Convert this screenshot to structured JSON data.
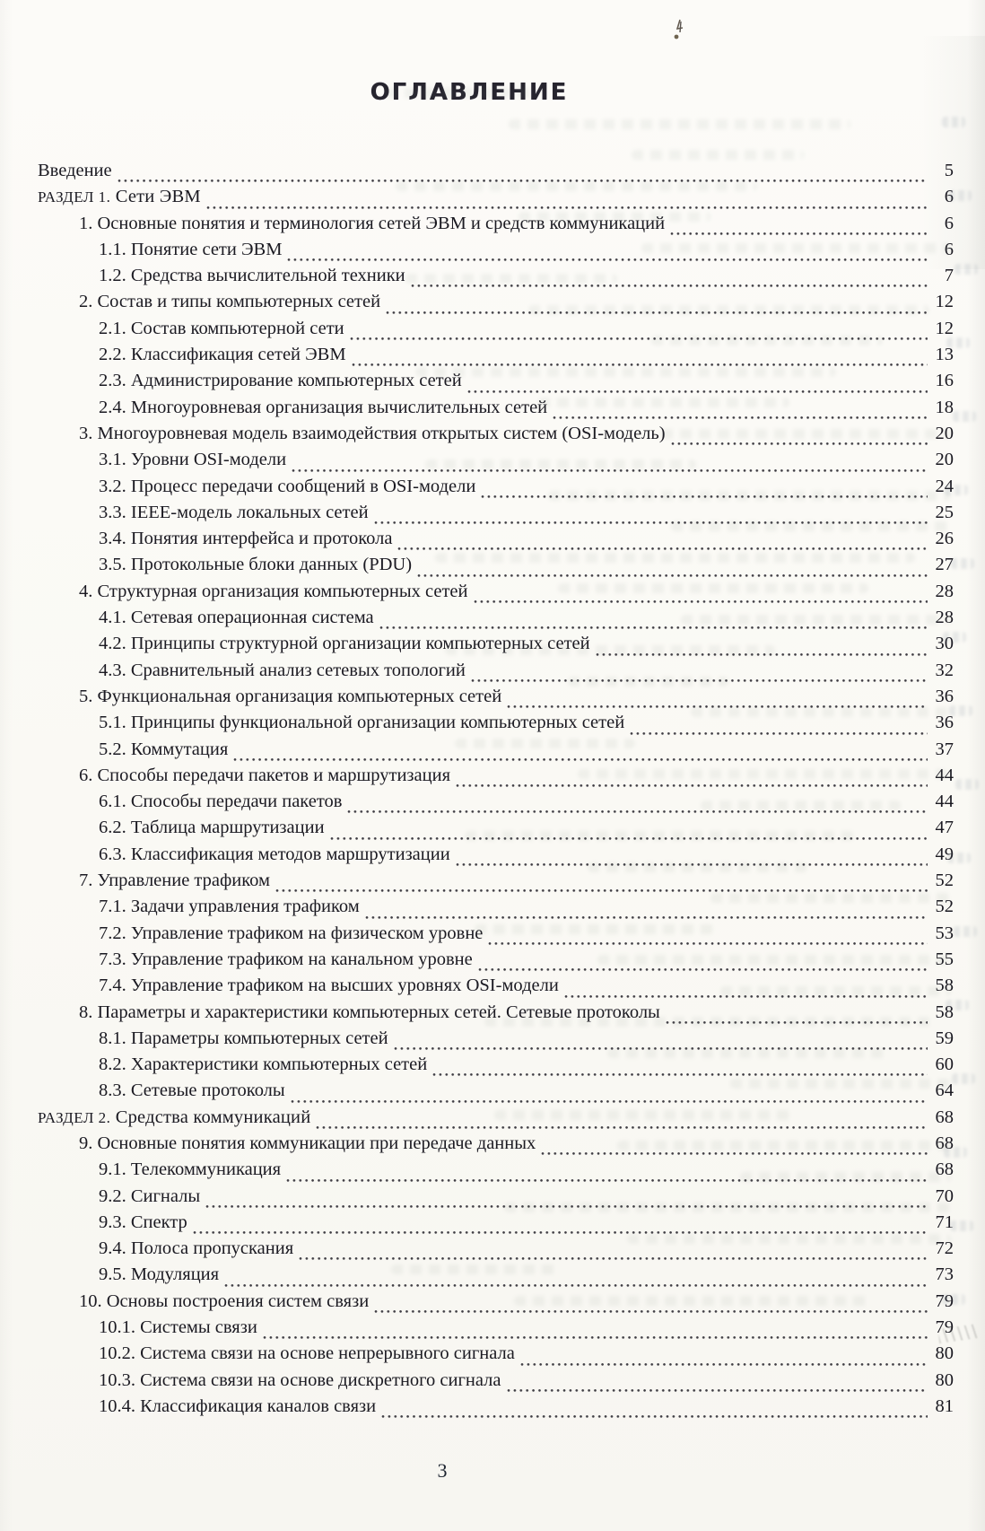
{
  "document": {
    "title": "ОГЛАВЛЕНИЕ",
    "page_number": "3",
    "toc": [
      {
        "label": "Введение",
        "page": "5",
        "level": 0
      },
      {
        "label": "Раздел 1. Сети ЭВМ",
        "page": "6",
        "level": 0,
        "section": true
      },
      {
        "label": "1. Основные понятия и терминология сетей ЭВМ и средств коммуникаций",
        "page": "6",
        "level": 1
      },
      {
        "label": "1.1. Понятие сети ЭВМ",
        "page": "6",
        "level": 2
      },
      {
        "label": "1.2. Средства вычислительной техники",
        "page": "7",
        "level": 2
      },
      {
        "label": "2. Состав и типы компьютерных сетей",
        "page": "12",
        "level": 1
      },
      {
        "label": "2.1. Состав компьютерной сети",
        "page": "12",
        "level": 2
      },
      {
        "label": "2.2. Классификация сетей ЭВМ",
        "page": "13",
        "level": 2
      },
      {
        "label": "2.3. Администрирование компьютерных сетей",
        "page": "16",
        "level": 2
      },
      {
        "label": "2.4. Многоуровневая организация вычислительных сетей",
        "page": "18",
        "level": 2
      },
      {
        "label": "3. Многоуровневая модель взаимодействия открытых систем (OSI-модель)",
        "page": "20",
        "level": 1
      },
      {
        "label": "3.1. Уровни OSI-модели",
        "page": "20",
        "level": 2
      },
      {
        "label": "3.2. Процесс передачи сообщений в OSI-модели",
        "page": "24",
        "level": 2
      },
      {
        "label": "3.3. IEEE-модель локальных сетей",
        "page": "25",
        "level": 2
      },
      {
        "label": "3.4. Понятия интерфейса и протокола",
        "page": "26",
        "level": 2
      },
      {
        "label": "3.5. Протокольные блоки данных (PDU)",
        "page": "27",
        "level": 2
      },
      {
        "label": "4. Структурная организация компьютерных сетей",
        "page": "28",
        "level": 1
      },
      {
        "label": "4.1. Сетевая операционная система",
        "page": "28",
        "level": 2
      },
      {
        "label": "4.2. Принципы структурной организации компьютерных сетей",
        "page": "30",
        "level": 2
      },
      {
        "label": "4.3. Сравнительный анализ сетевых топологий",
        "page": "32",
        "level": 2
      },
      {
        "label": "5. Функциональная организация компьютерных сетей",
        "page": "36",
        "level": 1
      },
      {
        "label": "5.1. Принципы функциональной организации компьютерных сетей",
        "page": "36",
        "level": 2
      },
      {
        "label": "5.2. Коммутация",
        "page": "37",
        "level": 2
      },
      {
        "label": "6. Способы передачи пакетов и маршрутизация",
        "page": "44",
        "level": 1
      },
      {
        "label": "6.1. Способы передачи пакетов",
        "page": "44",
        "level": 2
      },
      {
        "label": "6.2. Таблица маршрутизации",
        "page": "47",
        "level": 2
      },
      {
        "label": "6.3. Классификация методов маршрутизации",
        "page": "49",
        "level": 2
      },
      {
        "label": "7. Управление трафиком",
        "page": "52",
        "level": 1
      },
      {
        "label": "7.1. Задачи управления трафиком",
        "page": "52",
        "level": 2
      },
      {
        "label": "7.2. Управление трафиком на физическом уровне",
        "page": "53",
        "level": 2
      },
      {
        "label": "7.3. Управление трафиком на канальном уровне",
        "page": "55",
        "level": 2
      },
      {
        "label": "7.4. Управление трафиком на высших уровнях OSI-модели",
        "page": "58",
        "level": 2
      },
      {
        "label": "8. Параметры и характеристики компьютерных сетей.  Сетевые протоколы",
        "page": "58",
        "level": 1
      },
      {
        "label": "8.1. Параметры компьютерных сетей",
        "page": "59",
        "level": 2
      },
      {
        "label": "8.2. Характеристики компьютерных сетей",
        "page": "60",
        "level": 2
      },
      {
        "label": "8.3. Сетевые протоколы",
        "page": "64",
        "level": 2
      },
      {
        "label": "Раздел 2. Средства коммуникаций",
        "page": "68",
        "level": 0,
        "section": true
      },
      {
        "label": "9. Основные понятия коммуникации при передаче данных",
        "page": "68",
        "level": 1
      },
      {
        "label": "9.1. Телекоммуникация",
        "page": "68",
        "level": 2
      },
      {
        "label": "9.2. Сигналы",
        "page": "70",
        "level": 2
      },
      {
        "label": "9.3. Спектр",
        "page": "71",
        "level": 2
      },
      {
        "label": "9.4. Полоса пропускания",
        "page": "72",
        "level": 2
      },
      {
        "label": "9.5. Модуляция",
        "page": "73",
        "level": 2
      },
      {
        "label": "10. Основы построения систем связи",
        "page": "79",
        "level": 1
      },
      {
        "label": "10.1. Системы связи",
        "page": "79",
        "level": 2
      },
      {
        "label": "10.2. Система связи на основе непрерывного сигнала",
        "page": "80",
        "level": 2
      },
      {
        "label": "10.3. Система связи на основе дискретного сигнала",
        "page": "80",
        "level": 2
      },
      {
        "label": "10.4. Классификация каналов связи",
        "page": "81",
        "level": 2
      }
    ]
  }
}
